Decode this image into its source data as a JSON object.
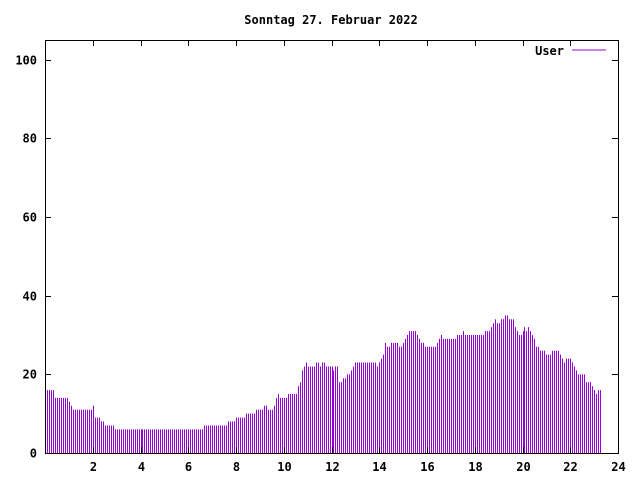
{
  "chart_data": {
    "type": "bar",
    "title": "Sonntag 27. Februar 2022",
    "xlabel": "",
    "ylabel": "",
    "xlim": [
      0,
      24
    ],
    "ylim": [
      0,
      105
    ],
    "x_ticks": [
      "2",
      "4",
      "6",
      "8",
      "10",
      "12",
      "14",
      "16",
      "18",
      "20",
      "22",
      "24"
    ],
    "y_ticks": [
      "0",
      "20",
      "40",
      "60",
      "80",
      "100"
    ],
    "grid": false,
    "legend_position": "top-right",
    "colors": {
      "series": "#9400d3",
      "axis": "#000000",
      "background": "#ffffff"
    },
    "series": [
      {
        "name": "User",
        "interval_minutes": 5,
        "values": [
          16,
          16,
          16,
          16,
          16,
          14,
          14,
          14,
          14,
          14,
          14,
          14,
          13,
          12,
          11,
          11,
          11,
          11,
          11,
          11,
          11,
          11,
          11,
          11,
          12,
          9,
          9,
          9,
          8,
          8,
          7,
          7,
          7,
          7,
          7,
          6,
          6,
          6,
          6,
          6,
          6,
          6,
          6,
          6,
          6,
          6,
          6,
          6,
          6,
          6,
          6,
          6,
          6,
          6,
          6,
          6,
          6,
          6,
          6,
          6,
          6,
          6,
          6,
          6,
          6,
          6,
          6,
          6,
          6,
          6,
          6,
          6,
          6,
          6,
          6,
          6,
          6,
          6,
          6,
          6,
          7,
          7,
          7,
          7,
          7,
          7,
          7,
          7,
          7,
          7,
          7,
          7,
          8,
          8,
          8,
          8,
          9,
          9,
          9,
          9,
          9,
          10,
          10,
          10,
          10,
          10,
          11,
          11,
          11,
          11,
          12,
          12,
          11,
          11,
          11,
          12,
          14,
          15,
          14,
          14,
          14,
          14,
          15,
          15,
          15,
          15,
          15,
          17,
          18,
          21,
          22,
          23,
          22,
          22,
          22,
          22,
          23,
          23,
          22,
          23,
          23,
          22,
          22,
          22,
          22,
          21,
          22,
          22,
          18,
          18,
          19,
          19,
          20,
          20,
          21,
          22,
          23,
          23,
          23,
          23,
          23,
          23,
          23,
          23,
          23,
          23,
          23,
          22,
          23,
          24,
          25,
          28,
          27,
          27,
          28,
          28,
          28,
          28,
          27,
          27,
          28,
          29,
          30,
          31,
          31,
          31,
          31,
          30,
          29,
          28,
          28,
          27,
          27,
          27,
          27,
          27,
          27,
          28,
          29,
          30,
          29,
          29,
          29,
          29,
          29,
          29,
          29,
          30,
          30,
          30,
          31,
          30,
          30,
          30,
          30,
          30,
          30,
          30,
          30,
          30,
          30,
          31,
          31,
          31,
          32,
          33,
          34,
          33,
          33,
          34,
          34,
          35,
          35,
          34,
          34,
          34,
          32,
          31,
          30,
          30,
          31,
          32,
          31,
          32,
          31,
          30,
          29,
          27,
          27,
          26,
          26,
          26,
          25,
          25,
          25,
          26,
          26,
          26,
          26,
          25,
          24,
          23,
          24,
          24,
          24,
          23,
          22,
          21,
          20,
          20,
          20,
          20,
          18,
          18,
          18,
          17,
          16,
          15,
          16,
          16
        ]
      }
    ]
  }
}
